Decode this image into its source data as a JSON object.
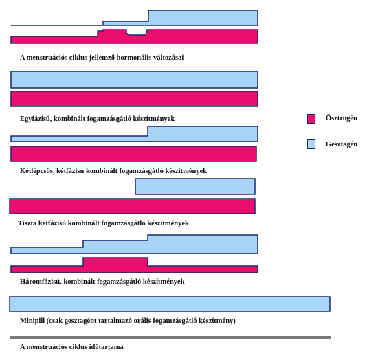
{
  "colors": {
    "estrogen": "#ea0f6c",
    "progestin": "#a8d5f5",
    "outline": "#1a2a6c",
    "timeline": "#7a7a7a"
  },
  "legend": {
    "estrogen_label": "Ösztrogén",
    "progestin_label": "Gesztagén"
  },
  "panels": [
    {
      "id": "menstrual-cycle",
      "caption": "A menstruációs ciklus jellemző hormonális változásai"
    },
    {
      "id": "monophasic",
      "caption": "Egyfázisú, kombinált fogamzásgátló készítmények"
    },
    {
      "id": "two-step-biphasic",
      "caption": "Kétlépcsős, kétfázisú kombinált fogamzásgátló készítmények"
    },
    {
      "id": "pure-biphasic",
      "caption": "Tiszta kétfázisú kombinált fogamzásgátló készítmények"
    },
    {
      "id": "triphasic",
      "caption": "Háromfázisú, kombinált fogamzásgátló készítmények"
    },
    {
      "id": "minipill",
      "caption": "Minipill (csak gesztagént tartalmazó orális fogamzásgátló készítmény)"
    }
  ],
  "timeline": {
    "caption": "A menstruációs ciklus időtartama"
  }
}
